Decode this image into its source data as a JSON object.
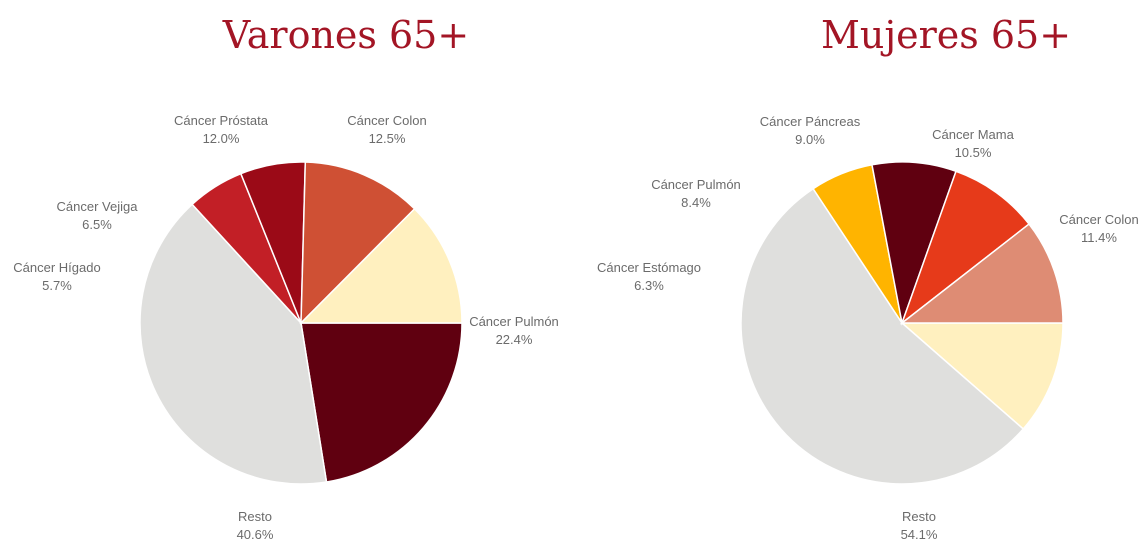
{
  "chart_data": [
    {
      "type": "pie",
      "title": "Varones 65+",
      "slices": [
        {
          "label": "Cáncer Pulmón",
          "value": 22.4,
          "pct": "22.4%",
          "color": "#600010"
        },
        {
          "label": "Resto",
          "value": 40.6,
          "pct": "40.6%",
          "color": "#dfdfdd"
        },
        {
          "label": "Cáncer Hígado",
          "value": 5.7,
          "pct": "5.7%",
          "color": "#c21f26"
        },
        {
          "label": "Cáncer Vejiga",
          "value": 6.5,
          "pct": "6.5%",
          "color": "#9b0a17"
        },
        {
          "label": "Cáncer Próstata",
          "value": 12.0,
          "pct": "12.0%",
          "color": "#cf5034"
        },
        {
          "label": "Cáncer Colon",
          "value": 12.5,
          "pct": "12.5%",
          "color": "#fff0bf"
        }
      ]
    },
    {
      "type": "pie",
      "title": "Mujeres 65+",
      "slices": [
        {
          "label": "Cáncer Colon",
          "value": 11.4,
          "pct": "11.4%",
          "color": "#fff0bf"
        },
        {
          "label": "Resto",
          "value": 54.1,
          "pct": "54.1%",
          "color": "#dfdfdd"
        },
        {
          "label": "Cáncer Estómago",
          "value": 6.3,
          "pct": "6.3%",
          "color": "#ffb400"
        },
        {
          "label": "Cáncer Pulmón",
          "value": 8.4,
          "pct": "8.4%",
          "color": "#600010"
        },
        {
          "label": "Cáncer Páncreas",
          "value": 9.0,
          "pct": "9.0%",
          "color": "#e63a1a"
        },
        {
          "label": "Cáncer Mama",
          "value": 10.5,
          "pct": "10.5%",
          "color": "#de8c74"
        }
      ]
    }
  ]
}
